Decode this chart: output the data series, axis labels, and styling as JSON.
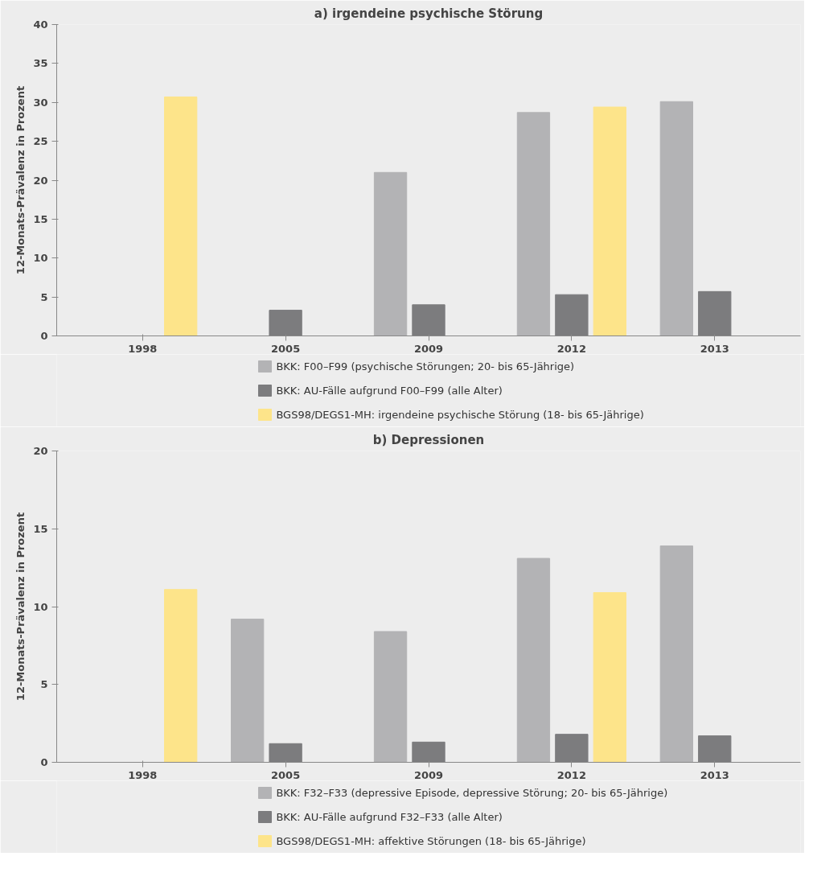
{
  "chart_data": [
    {
      "type": "bar",
      "title": "a) irgendeine psychische Störung",
      "ylabel": "12-Monats-Prävalenz in Prozent",
      "categories": [
        "1998",
        "2005",
        "2009",
        "2012",
        "2013"
      ],
      "ylim": [
        0,
        40
      ],
      "yticks": [
        0,
        5,
        10,
        15,
        20,
        25,
        30,
        35,
        40
      ],
      "grid": false,
      "legend": "bottom",
      "series": [
        {
          "name": "BKK: F00–F99 (psychische Störungen; 20- bis 65-Jährige)",
          "color": "#b3b3b5",
          "values": [
            null,
            null,
            21.0,
            28.7,
            30.1
          ]
        },
        {
          "name": "BKK: AU-Fälle aufgrund F00–F99 (alle Alter)",
          "color": "#7c7c7e",
          "values": [
            null,
            3.3,
            4.0,
            5.3,
            5.7
          ]
        },
        {
          "name": "BGS98/DEGS1-MH: irgendeine psychische Störung (18- bis 65-Jährige)",
          "color": "#fde48a",
          "values": [
            30.7,
            null,
            null,
            29.4,
            null
          ]
        }
      ]
    },
    {
      "type": "bar",
      "title": "b) Depressionen",
      "ylabel": "12-Monats-Prävalenz in Prozent",
      "categories": [
        "1998",
        "2005",
        "2009",
        "2012",
        "2013"
      ],
      "ylim": [
        0,
        20
      ],
      "yticks": [
        0,
        5,
        10,
        15,
        20
      ],
      "grid": false,
      "legend": "bottom",
      "series": [
        {
          "name": "BKK: F32–F33 (depressive Episode, depressive Störung; 20- bis 65-Jährige)",
          "color": "#b3b3b5",
          "values": [
            null,
            9.2,
            8.4,
            13.1,
            13.9
          ]
        },
        {
          "name": "BKK: AU-Fälle aufgrund F32–F33 (alle Alter)",
          "color": "#7c7c7e",
          "values": [
            null,
            1.2,
            1.3,
            1.8,
            1.7
          ]
        },
        {
          "name": "BGS98/DEGS1-MH: affektive Störungen (18- bis 65-Jährige)",
          "color": "#fde48a",
          "values": [
            11.1,
            null,
            null,
            10.9,
            null
          ]
        }
      ]
    }
  ]
}
